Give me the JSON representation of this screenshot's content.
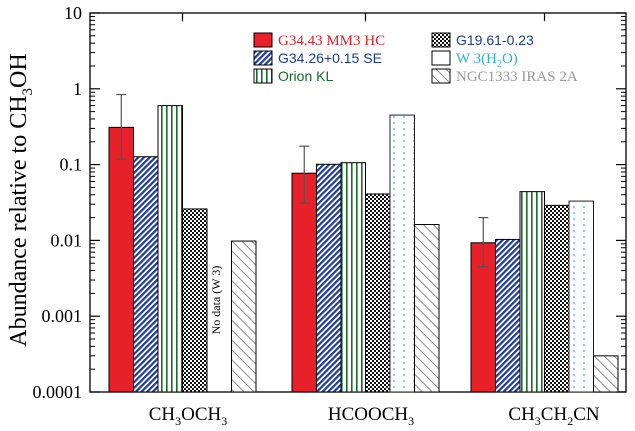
{
  "chart_data": {
    "type": "bar",
    "ylabel": "Abundance relative to CH3OH",
    "yscale": "log",
    "ylim": [
      0.0001,
      10
    ],
    "yticks": [
      "0.0001",
      "0.001",
      "0.01",
      "0.1",
      "1",
      "10"
    ],
    "categories": [
      "CH3OCH3",
      "HCOOCH3",
      "CH3CH2CN"
    ],
    "series": [
      {
        "name": "G34.43 MM3 HC",
        "color": "#e8202a",
        "pattern": "solid",
        "values": [
          0.31,
          0.077,
          0.0093
        ],
        "err_hi": [
          0.84,
          0.175,
          0.02
        ],
        "err_lo": [
          0.118,
          0.031,
          0.0045
        ]
      },
      {
        "name": "G34.26+0.15 SE",
        "color": "#1f3b99",
        "pattern": "diag-dots",
        "values": [
          0.127,
          0.101,
          0.0103
        ]
      },
      {
        "name": "Orion KL",
        "color": "#1a6b2a",
        "pattern": "vertical-lines",
        "values": [
          0.6,
          0.106,
          0.044
        ]
      },
      {
        "name": "G19.61-0.23",
        "color": "#1f3b99",
        "pattern": "checker",
        "values": [
          0.026,
          0.041,
          0.029
        ]
      },
      {
        "name": "W 3(H2O)",
        "color": "#2fb3c7",
        "pattern": "cyan-dots",
        "values": [
          null,
          0.45,
          0.033
        ]
      },
      {
        "name": "NGC1333 IRAS 2A",
        "color": "#9a9a9a",
        "pattern": "hatch",
        "values": [
          0.0098,
          0.0162,
          0.0003
        ]
      }
    ],
    "annotations": [
      "No data (W 3)"
    ],
    "legend_position": "top-right",
    "grid": false
  }
}
